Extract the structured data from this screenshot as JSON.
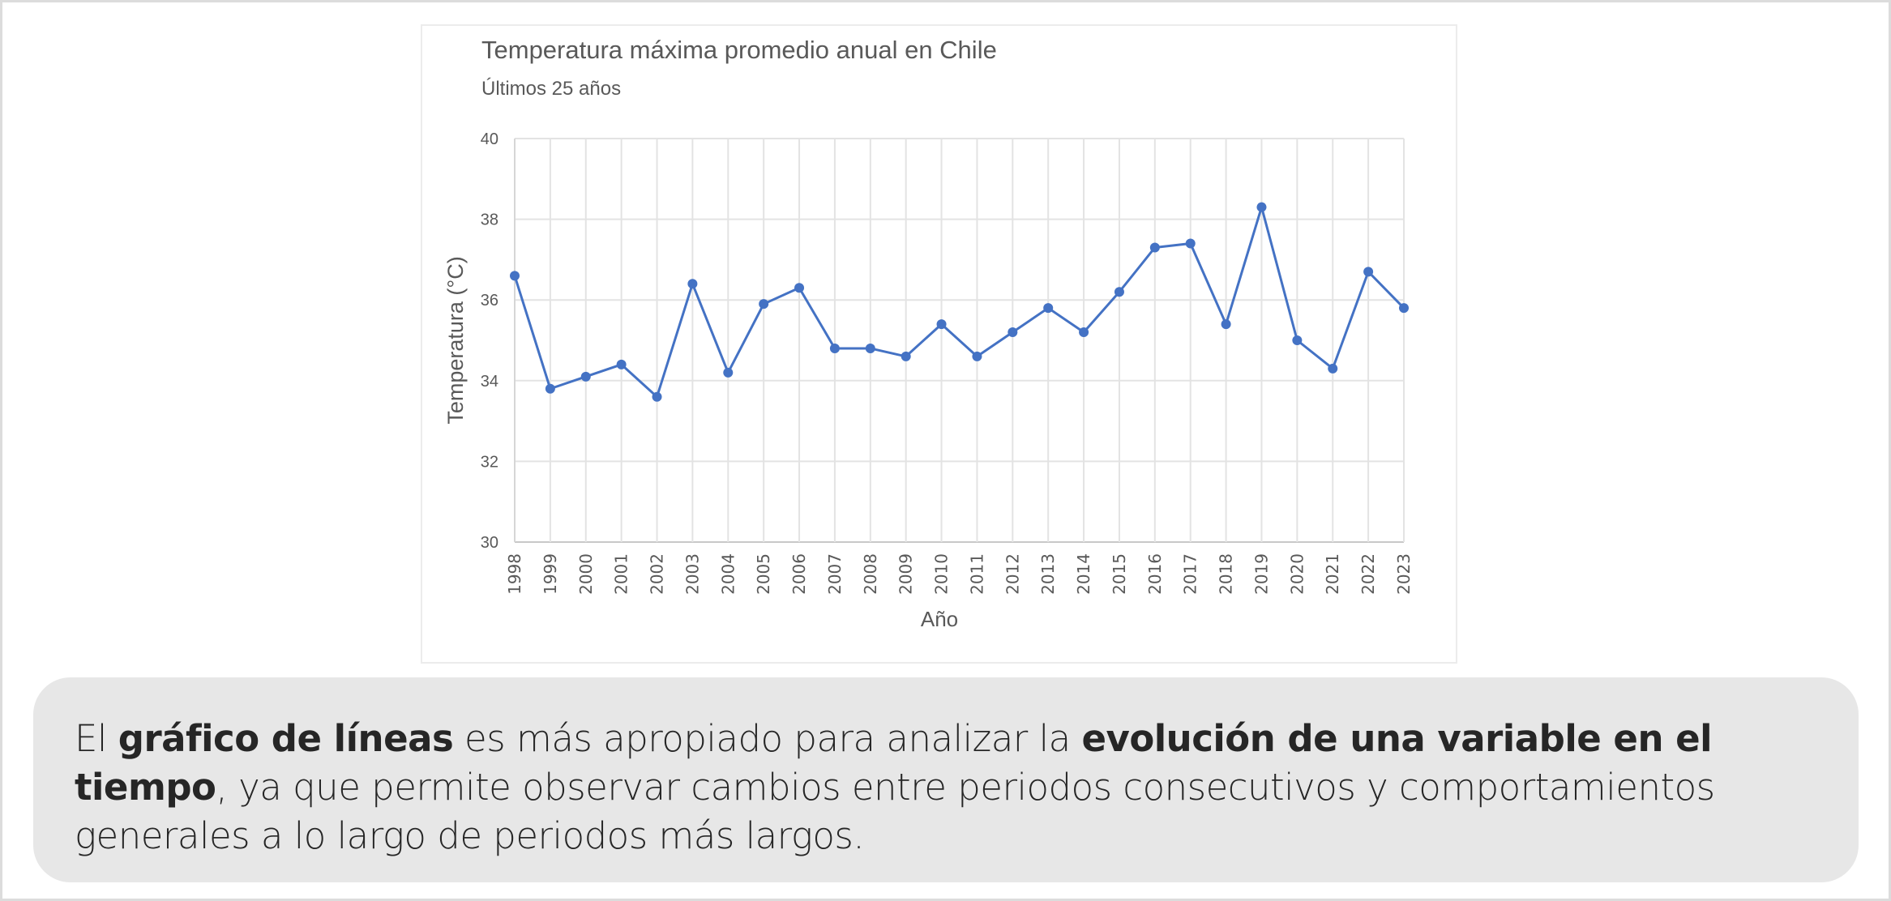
{
  "chart_data": {
    "type": "line",
    "title": "Temperatura máxima promedio anual en Chile",
    "subtitle": "Últimos 25 años",
    "xlabel": "Año",
    "ylabel": "Temperatura (°C)",
    "ylim": [
      30,
      40
    ],
    "yticks": [
      30,
      32,
      34,
      36,
      38,
      40
    ],
    "grid": true,
    "legend": "none",
    "x": [
      "1998",
      "1999",
      "2000",
      "2001",
      "2002",
      "2003",
      "2004",
      "2005",
      "2006",
      "2007",
      "2008",
      "2009",
      "2010",
      "2011",
      "2012",
      "2013",
      "2014",
      "2015",
      "2016",
      "2017",
      "2018",
      "2019",
      "2020",
      "2021",
      "2022",
      "2023"
    ],
    "series": [
      {
        "name": "Temperatura máxima promedio",
        "color": "#4472c4",
        "values": [
          36.6,
          33.8,
          34.1,
          34.4,
          33.6,
          36.4,
          34.2,
          35.9,
          36.3,
          34.8,
          34.8,
          34.6,
          35.4,
          34.6,
          35.2,
          35.8,
          35.2,
          36.2,
          37.3,
          37.4,
          35.4,
          38.3,
          35.0,
          34.3,
          36.7,
          35.8
        ]
      }
    ]
  },
  "caption": {
    "parts": [
      {
        "text": "El ",
        "bold": false
      },
      {
        "text": "gráfico de líneas",
        "bold": true
      },
      {
        "text": " es más apropiado para analizar la ",
        "bold": false
      },
      {
        "text": "evolución de una variable en el tiempo",
        "bold": true
      },
      {
        "text": ", ya que permite observar cambios entre periodos consecutivos y comportamientos generales a lo largo de periodos más largos.",
        "bold": false
      }
    ]
  },
  "colors": {
    "line": "#4472c4",
    "panel": "#e7e7e7",
    "grid": "#e3e3e3",
    "text": "#595959"
  }
}
